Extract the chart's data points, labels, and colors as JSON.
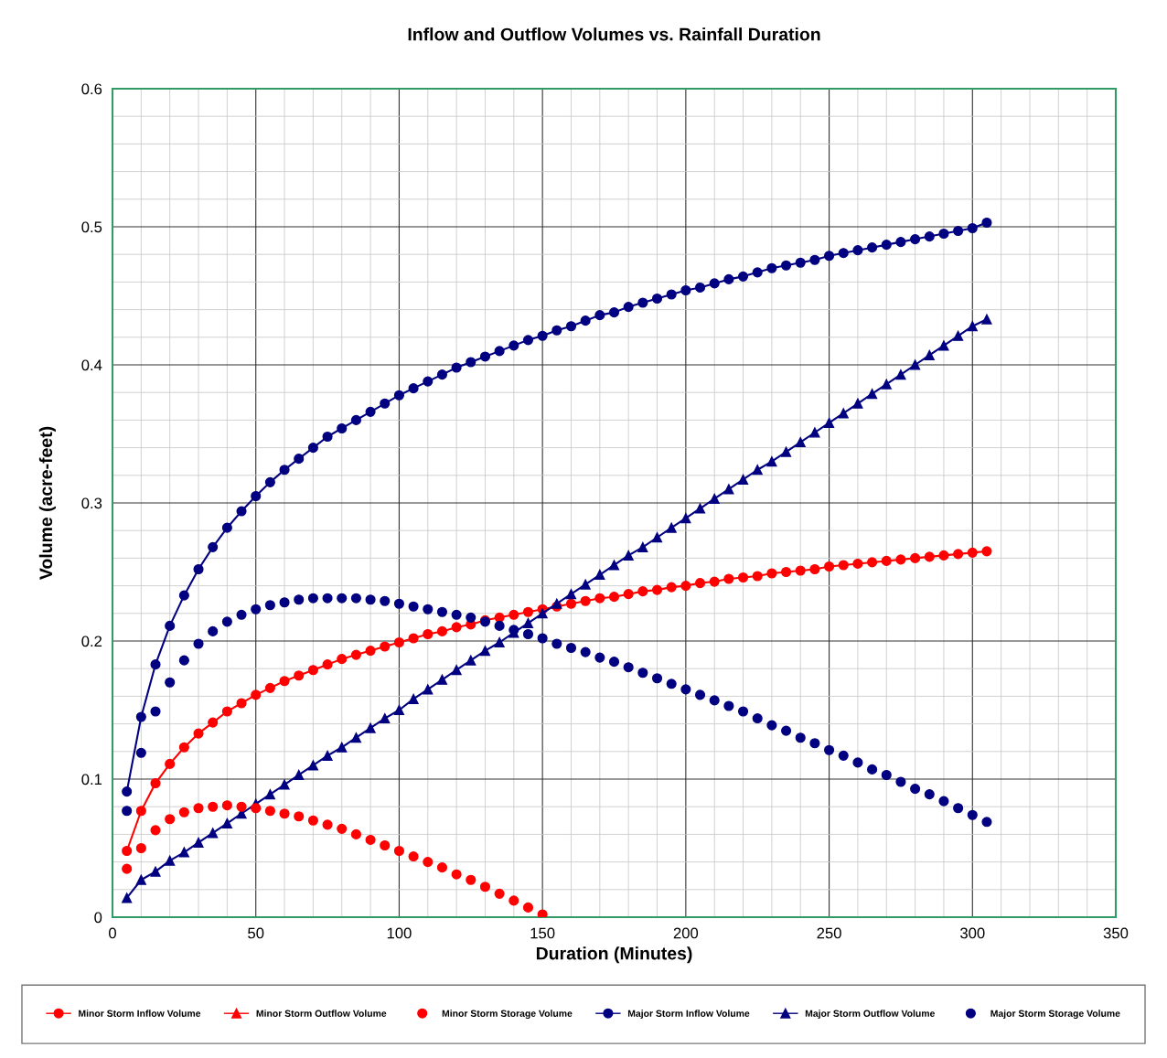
{
  "chart_data": {
    "type": "line",
    "title": "Inflow and Outflow Volumes vs. Rainfall Duration",
    "xlabel": "Duration (Minutes)",
    "ylabel": "Volume (acre-feet)",
    "x": [
      5,
      10,
      15,
      20,
      25,
      30,
      35,
      40,
      45,
      50,
      55,
      60,
      65,
      70,
      75,
      80,
      85,
      90,
      95,
      100,
      105,
      110,
      115,
      120,
      125,
      130,
      135,
      140,
      145,
      150,
      155,
      160,
      165,
      170,
      175,
      180,
      185,
      190,
      195,
      200,
      205,
      210,
      215,
      220,
      225,
      230,
      235,
      240,
      245,
      250,
      255,
      260,
      265,
      270,
      275,
      280,
      285,
      290,
      295,
      300,
      305
    ],
    "xlim": [
      0,
      350
    ],
    "xticks": [
      0,
      50,
      100,
      150,
      200,
      250,
      300,
      350
    ],
    "ylim": [
      0,
      0.6
    ],
    "yticks": [
      0,
      0.1,
      0.2,
      0.3,
      0.4,
      0.5,
      0.6
    ],
    "grid": true,
    "legend": "bottom",
    "series": [
      {
        "name": "Minor Storm Inflow Volume",
        "color": "#ff0000",
        "marker": "circle",
        "values": [
          0.048,
          0.077,
          0.097,
          0.111,
          0.123,
          0.133,
          0.141,
          0.149,
          0.155,
          0.161,
          0.166,
          0.171,
          0.175,
          0.179,
          0.183,
          0.187,
          0.19,
          0.193,
          0.196,
          0.199,
          0.202,
          0.205,
          0.207,
          0.21,
          0.212,
          0.215,
          0.217,
          0.219,
          0.221,
          0.223,
          0.225,
          0.227,
          0.229,
          0.231,
          0.232,
          0.234,
          0.236,
          0.237,
          0.239,
          0.24,
          0.242,
          0.243,
          0.245,
          0.246,
          0.247,
          0.249,
          0.25,
          0.251,
          0.252,
          0.254,
          0.255,
          0.256,
          0.257,
          0.258,
          0.259,
          0.26,
          0.261,
          0.262,
          0.263,
          0.264,
          0.265
        ]
      },
      {
        "name": "Minor Storm Outflow Volume",
        "color": "#ff0000",
        "marker": "triangle",
        "values": [
          null,
          null,
          null,
          null,
          null,
          null,
          null,
          null,
          null,
          null,
          null,
          null,
          null,
          null,
          null,
          null,
          null,
          null,
          null,
          null,
          null,
          null,
          null,
          null,
          null,
          null,
          null,
          null,
          null,
          null,
          null,
          null,
          null,
          null,
          null,
          null,
          null,
          null,
          null,
          null,
          null,
          null,
          null,
          null,
          null,
          null,
          null,
          null,
          null,
          null,
          null,
          null,
          null,
          null,
          null,
          null,
          null,
          null,
          null,
          null,
          null
        ]
      },
      {
        "name": "Minor Storm Storage Volume",
        "color": "#ff0000",
        "type": "scatter",
        "marker": "circle",
        "x": [
          5,
          10,
          15,
          20,
          25,
          30,
          35,
          40,
          45,
          50,
          55,
          60,
          65,
          70,
          75,
          80,
          85,
          90,
          95,
          100,
          105,
          110,
          115,
          120,
          125,
          130,
          135,
          140,
          145,
          150
        ],
        "values": [
          0.035,
          0.05,
          0.063,
          0.071,
          0.076,
          0.079,
          0.08,
          0.081,
          0.08,
          0.079,
          0.077,
          0.075,
          0.073,
          0.07,
          0.067,
          0.064,
          0.06,
          0.056,
          0.052,
          0.048,
          0.044,
          0.04,
          0.036,
          0.031,
          0.027,
          0.022,
          0.017,
          0.012,
          0.007,
          0.002
        ]
      },
      {
        "name": "Major Storm Inflow Volume",
        "color": "#000080",
        "marker": "circle",
        "values": [
          0.091,
          0.145,
          0.183,
          0.211,
          0.233,
          0.252,
          0.268,
          0.282,
          0.294,
          0.305,
          0.315,
          0.324,
          0.332,
          0.34,
          0.348,
          0.354,
          0.36,
          0.366,
          0.372,
          0.378,
          0.383,
          0.388,
          0.393,
          0.398,
          0.402,
          0.406,
          0.41,
          0.414,
          0.418,
          0.421,
          0.425,
          0.428,
          0.432,
          0.436,
          0.438,
          0.442,
          0.445,
          0.448,
          0.451,
          0.454,
          0.456,
          0.459,
          0.462,
          0.464,
          0.467,
          0.47,
          0.472,
          0.474,
          0.476,
          0.479,
          0.481,
          0.483,
          0.485,
          0.487,
          0.489,
          0.491,
          0.493,
          0.495,
          0.497,
          0.499,
          0.503
        ]
      },
      {
        "name": "Major Storm Outflow Volume",
        "color": "#000080",
        "marker": "triangle",
        "values": [
          0.014,
          0.027,
          0.033,
          0.041,
          0.047,
          0.054,
          0.061,
          0.068,
          0.075,
          0.082,
          0.089,
          0.096,
          0.103,
          0.11,
          0.117,
          0.123,
          0.13,
          0.137,
          0.144,
          0.15,
          0.158,
          0.165,
          0.172,
          0.179,
          0.186,
          0.193,
          0.199,
          0.206,
          0.213,
          0.22,
          0.227,
          0.234,
          0.241,
          0.248,
          0.255,
          0.262,
          0.268,
          0.275,
          0.282,
          0.289,
          0.296,
          0.303,
          0.31,
          0.317,
          0.324,
          0.33,
          0.337,
          0.344,
          0.351,
          0.358,
          0.365,
          0.372,
          0.379,
          0.386,
          0.393,
          0.4,
          0.407,
          0.414,
          0.421,
          0.428,
          0.433
        ]
      },
      {
        "name": "Major Storm Storage Volume",
        "color": "#000080",
        "type": "scatter",
        "marker": "circle",
        "values": [
          0.077,
          0.119,
          0.149,
          0.17,
          0.186,
          0.198,
          0.207,
          0.214,
          0.219,
          0.223,
          0.226,
          0.228,
          0.23,
          0.231,
          0.231,
          0.231,
          0.231,
          0.23,
          0.229,
          0.227,
          0.225,
          0.223,
          0.221,
          0.219,
          0.217,
          0.214,
          0.211,
          0.208,
          0.205,
          0.202,
          0.198,
          0.195,
          0.192,
          0.188,
          0.185,
          0.181,
          0.177,
          0.173,
          0.169,
          0.165,
          0.161,
          0.157,
          0.153,
          0.149,
          0.144,
          0.139,
          0.135,
          0.13,
          0.126,
          0.121,
          0.117,
          0.112,
          0.107,
          0.103,
          0.098,
          0.093,
          0.089,
          0.084,
          0.079,
          0.074,
          0.069
        ]
      }
    ]
  }
}
